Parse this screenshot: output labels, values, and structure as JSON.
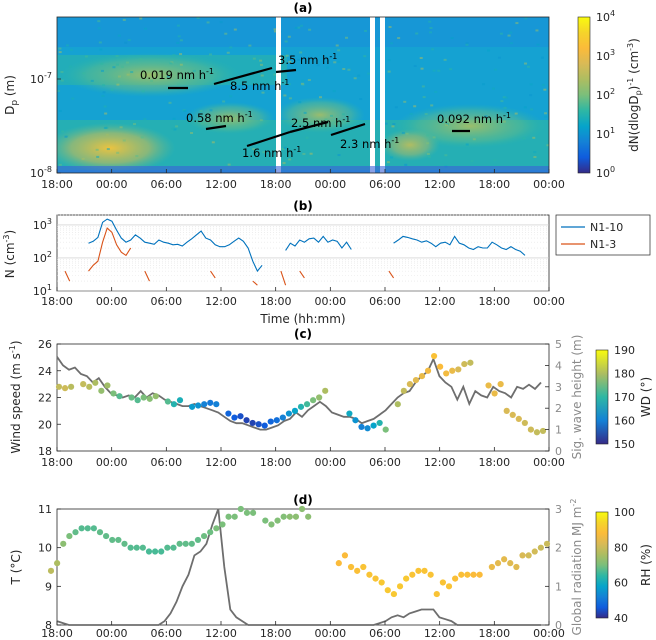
{
  "chart_data": [
    {
      "panel": "(a)",
      "type": "heatmap",
      "ylabel": "D",
      "ylabel_sub": "p",
      "ylabel_unit": " (m)",
      "x_ticks": [
        "18:00",
        "00:00",
        "06:00",
        "12:00",
        "18:00",
        "00:00",
        "06:00",
        "12:00",
        "18:00",
        "00:00"
      ],
      "y_ticks": [
        "10",
        "10"
      ],
      "y_tick_exps": [
        "-8",
        "-7"
      ],
      "colorbar_label": "dN(dlogD",
      "colorbar_label_sub": "p",
      "colorbar_label_sup": ")",
      "colorbar_label_exp": "-1",
      "colorbar_label_unit": " (cm",
      "colorbar_label_unit_exp": "-3",
      "colorbar_label_end": ")",
      "colorbar_ticks": [
        "10",
        "10",
        "10",
        "10",
        "10"
      ],
      "colorbar_tick_exps": [
        "0",
        "1",
        "2",
        "3",
        "4"
      ],
      "growth_rates": [
        {
          "label": "0.019 nm h",
          "exp": "-1"
        },
        {
          "label": "8.5 nm h",
          "exp": "-1"
        },
        {
          "label": "3.5 nm h",
          "exp": "-1"
        },
        {
          "label": "0.58 nm  h",
          "exp": "-1"
        },
        {
          "label": "2.5 nm h",
          "exp": "-1"
        },
        {
          "label": "1.6 nm h",
          "exp": "-1"
        },
        {
          "label": "2.3 nm h",
          "exp": "-1"
        },
        {
          "label": "0.092 nm h",
          "exp": "-1"
        }
      ]
    },
    {
      "panel": "(b)",
      "type": "line",
      "xlabel": "Time (hh:mm)",
      "ylabel": "N (cm",
      "ylabel_exp": "-3",
      "ylabel_end": ")",
      "y_scale": "log",
      "ylim": [
        10,
        2000
      ],
      "x_ticks": [
        "18:00",
        "00:00",
        "06:00",
        "12:00",
        "18:00",
        "00:00",
        "06:00",
        "12:00",
        "18:00",
        "00:00"
      ],
      "y_ticks": [
        "10",
        "10",
        "10"
      ],
      "y_tick_exps": [
        "1",
        "2",
        "3"
      ],
      "legend_position": "right",
      "series": [
        {
          "name": "N1-10",
          "color": "#0072BD",
          "values": [
            null,
            null,
            null,
            null,
            null,
            280,
            320,
            420,
            1200,
            1500,
            1300,
            700,
            400,
            300,
            350,
            500,
            400,
            300,
            280,
            260,
            350,
            300,
            280,
            250,
            260,
            230,
            300,
            380,
            500,
            650,
            400,
            350,
            250,
            220,
            220,
            250,
            320,
            400,
            320,
            200,
            80,
            40,
            60,
            null,
            null,
            null,
            null,
            170,
            280,
            230,
            350,
            300,
            380,
            400,
            300,
            450,
            300,
            350,
            320,
            200,
            300,
            180,
            null,
            null,
            null,
            null,
            null,
            null,
            350,
            null,
            280,
            350,
            450,
            420,
            380,
            350,
            300,
            330,
            280,
            220,
            280,
            300,
            250,
            450,
            280,
            250,
            200,
            180,
            220,
            200,
            200,
            300,
            250,
            200,
            180,
            220,
            180,
            160,
            120
          ]
        },
        {
          "name": "N1-3",
          "color": "#D95319",
          "values": [
            40,
            20,
            null,
            null,
            null,
            40,
            60,
            80,
            300,
            800,
            600,
            250,
            150,
            120,
            200,
            null,
            null,
            40,
            20,
            null,
            null,
            50,
            null,
            30,
            null,
            null,
            20,
            null,
            15,
            null,
            null,
            40,
            25,
            null,
            20,
            null,
            null,
            null,
            15,
            null,
            20,
            15,
            null,
            null,
            null,
            null,
            40,
            15,
            null,
            null,
            40,
            25,
            null,
            50,
            null,
            null,
            30,
            null,
            null,
            60,
            null,
            18,
            null,
            null,
            null,
            null,
            null,
            50,
            null,
            40,
            25,
            null,
            null,
            null,
            null,
            20,
            null,
            40,
            null,
            null,
            null,
            null,
            30,
            null,
            null,
            null,
            null,
            25,
            null,
            null,
            null,
            null,
            null,
            null,
            null,
            null,
            null,
            null,
            null
          ]
        }
      ]
    },
    {
      "panel": "(c)",
      "type": "scatter",
      "ylabel": "Wind speed (m s",
      "ylabel_exp": "-1",
      "ylabel_end": ")",
      "ylim": [
        18,
        26
      ],
      "y2label": "Sig. wave height (m)",
      "y2lim": [
        0,
        5
      ],
      "x_ticks": [
        "18:00",
        "00:00",
        "06:00",
        "12:00",
        "18:00",
        "00:00",
        "06:00",
        "12:00",
        "18:00",
        "00:00"
      ],
      "y_ticks": [
        "18",
        "20",
        "22",
        "24",
        "26"
      ],
      "y2_ticks": [
        "0",
        "1",
        "2",
        "3",
        "4",
        "5"
      ],
      "colorbar_label": "WD (°)",
      "colorbar_range": [
        150,
        190
      ],
      "colorbar_ticks": [
        "150",
        "160",
        "170",
        "180",
        "190"
      ],
      "wind_speed": [
        22.8,
        22.7,
        22.8,
        null,
        23.0,
        22.8,
        23.1,
        22.5,
        22.9,
        22.3,
        22.1,
        null,
        22.0,
        21.8,
        22.0,
        21.9,
        22.1,
        null,
        21.7,
        21.5,
        21.8,
        null,
        21.3,
        21.4,
        21.5,
        21.6,
        21.5,
        null,
        20.8,
        20.5,
        20.6,
        20.3,
        20.1,
        20.0,
        19.9,
        20.2,
        20.3,
        20.5,
        20.8,
        21.0,
        21.3,
        21.5,
        21.8,
        22.0,
        22.5,
        null,
        null,
        null,
        20.8,
        20.3,
        19.8,
        19.7,
        19.9,
        20.1,
        19.6,
        null,
        21.5,
        22.5,
        23.0,
        23.3,
        23.6,
        24.0,
        25.1,
        24.3,
        23.8,
        24.0,
        24.1,
        24.5,
        24.6,
        null,
        null,
        22.9,
        22.3,
        23.0,
        21.0,
        20.7,
        20.4,
        20.1,
        19.6,
        19.4,
        19.5
      ],
      "wind_dir": [
        176,
        177,
        175,
        null,
        176,
        175,
        174,
        172,
        173,
        170,
        168,
        null,
        169,
        168,
        170,
        171,
        172,
        null,
        168,
        165,
        164,
        null,
        161,
        160,
        158,
        157,
        158,
        null,
        155,
        154,
        153,
        152,
        152,
        153,
        154,
        155,
        156,
        158,
        160,
        162,
        165,
        167,
        170,
        172,
        174,
        null,
        null,
        null,
        163,
        160,
        158,
        159,
        162,
        165,
        170,
        null,
        174,
        176,
        178,
        179,
        180,
        181,
        183,
        182,
        181,
        180,
        178,
        177,
        176,
        null,
        null,
        180,
        180,
        180,
        178,
        178,
        178,
        177,
        177,
        176,
        176
      ],
      "wave_height": [
        4.4,
        4.0,
        3.8,
        3.9,
        3.6,
        3.5,
        3.2,
        3.4,
        3.0,
        2.7,
        2.6,
        2.5,
        2.6,
        2.5,
        2.8,
        2.5,
        2.7,
        2.6,
        2.4,
        2.3,
        2.2,
        2.1,
        2.1,
        2.2,
        2.1,
        2.0,
        1.9,
        1.8,
        1.6,
        1.4,
        1.3,
        1.3,
        1.2,
        1.1,
        1.0,
        1.0,
        1.1,
        1.2,
        1.4,
        1.5,
        1.8,
        1.6,
        1.9,
        2.1,
        2.3,
        2.1,
        1.8,
        1.7,
        1.6,
        1.6,
        1.5,
        1.3,
        1.4,
        1.5,
        1.7,
        1.9,
        2.2,
        2.5,
        2.7,
        2.8,
        3.2,
        3.5,
        3.7,
        4.3,
        3.5,
        3.2,
        3.0,
        2.4,
        3.0,
        2.2,
        2.8,
        2.6,
        2.5,
        3.0,
        2.8,
        2.7,
        2.5,
        3.0,
        2.9,
        3.1,
        2.9,
        3.2
      ]
    },
    {
      "panel": "(d)",
      "type": "scatter",
      "ylabel": "T (°C)",
      "ylim": [
        8,
        11
      ],
      "y2label": "Global radiation MJ m",
      "y2label_exp": "-2",
      "y2lim": [
        0,
        3
      ],
      "x_ticks": [
        "18:00",
        "00:00",
        "06:00",
        "12:00",
        "18:00",
        "00:00",
        "06:00",
        "12:00",
        "18:00",
        "00:00"
      ],
      "y_ticks": [
        "8",
        "9",
        "10",
        "11"
      ],
      "y2_ticks": [
        "0",
        "1",
        "2",
        "3"
      ],
      "colorbar_label": "RH (%)",
      "colorbar_range": [
        40,
        100
      ],
      "colorbar_ticks": [
        "40",
        "60",
        "80",
        "100"
      ],
      "temperature": [
        9.4,
        9.6,
        10.1,
        10.3,
        10.4,
        10.5,
        10.5,
        10.5,
        10.4,
        10.3,
        10.2,
        10.2,
        10.1,
        10.0,
        10.0,
        10.0,
        9.9,
        9.9,
        9.9,
        10.0,
        10.0,
        10.1,
        10.1,
        10.1,
        10.2,
        10.3,
        10.4,
        10.5,
        10.6,
        10.8,
        10.8,
        11.0,
        10.9,
        10.9,
        null,
        10.7,
        10.6,
        10.7,
        10.8,
        10.8,
        10.8,
        11.0,
        10.8,
        null,
        null,
        null,
        null,
        9.6,
        9.8,
        9.5,
        9.4,
        9.5,
        9.3,
        9.2,
        9.1,
        8.9,
        8.8,
        9.0,
        9.2,
        9.3,
        9.4,
        9.4,
        9.3,
        8.8,
        9.1,
        9.0,
        9.2,
        9.3,
        9.3,
        9.3,
        9.3,
        null,
        9.5,
        9.6,
        9.7,
        9.6,
        9.5,
        9.8,
        9.8,
        9.9,
        10.0,
        10.1
      ],
      "rel_humidity": [
        78,
        76,
        72,
        70,
        68,
        67,
        67,
        67,
        68,
        68,
        68,
        68,
        68,
        67,
        67,
        67,
        66,
        66,
        66,
        67,
        67,
        68,
        68,
        68,
        68,
        69,
        69,
        70,
        70,
        70,
        70,
        70,
        70,
        70,
        null,
        70,
        71,
        71,
        71,
        72,
        72,
        72,
        72,
        null,
        null,
        null,
        null,
        88,
        88,
        89,
        89,
        90,
        90,
        90,
        91,
        91,
        91,
        91,
        91,
        90,
        90,
        90,
        90,
        90,
        90,
        90,
        89,
        89,
        89,
        88,
        88,
        null,
        85,
        84,
        84,
        83,
        83,
        82,
        81,
        81,
        80,
        80
      ],
      "radiation": [
        0.1,
        0.05,
        0,
        0,
        0,
        0,
        0,
        0,
        0,
        0,
        0,
        0,
        0,
        0,
        0,
        0,
        0,
        0,
        0.1,
        0.3,
        0.6,
        1.0,
        1.3,
        1.8,
        1.9,
        2.1,
        2.6,
        3.0,
        1.5,
        0.4,
        0.2,
        0.1,
        0,
        0,
        0,
        0,
        0,
        0,
        0,
        0,
        0,
        0,
        0,
        0,
        0,
        0,
        0,
        0,
        0,
        0,
        0,
        0,
        0,
        0,
        0.05,
        0.1,
        0.2,
        0.25,
        0.2,
        0.3,
        0.35,
        0.4,
        0.4,
        0.4,
        0.2,
        0.15,
        0.1,
        0,
        0,
        0,
        0,
        0,
        0,
        0,
        0,
        0,
        0,
        0,
        0,
        0,
        0,
        0
      ]
    }
  ],
  "colors": {
    "n110": "#0072BD",
    "n13": "#D95319",
    "gray_line": "#6e6e6e"
  }
}
